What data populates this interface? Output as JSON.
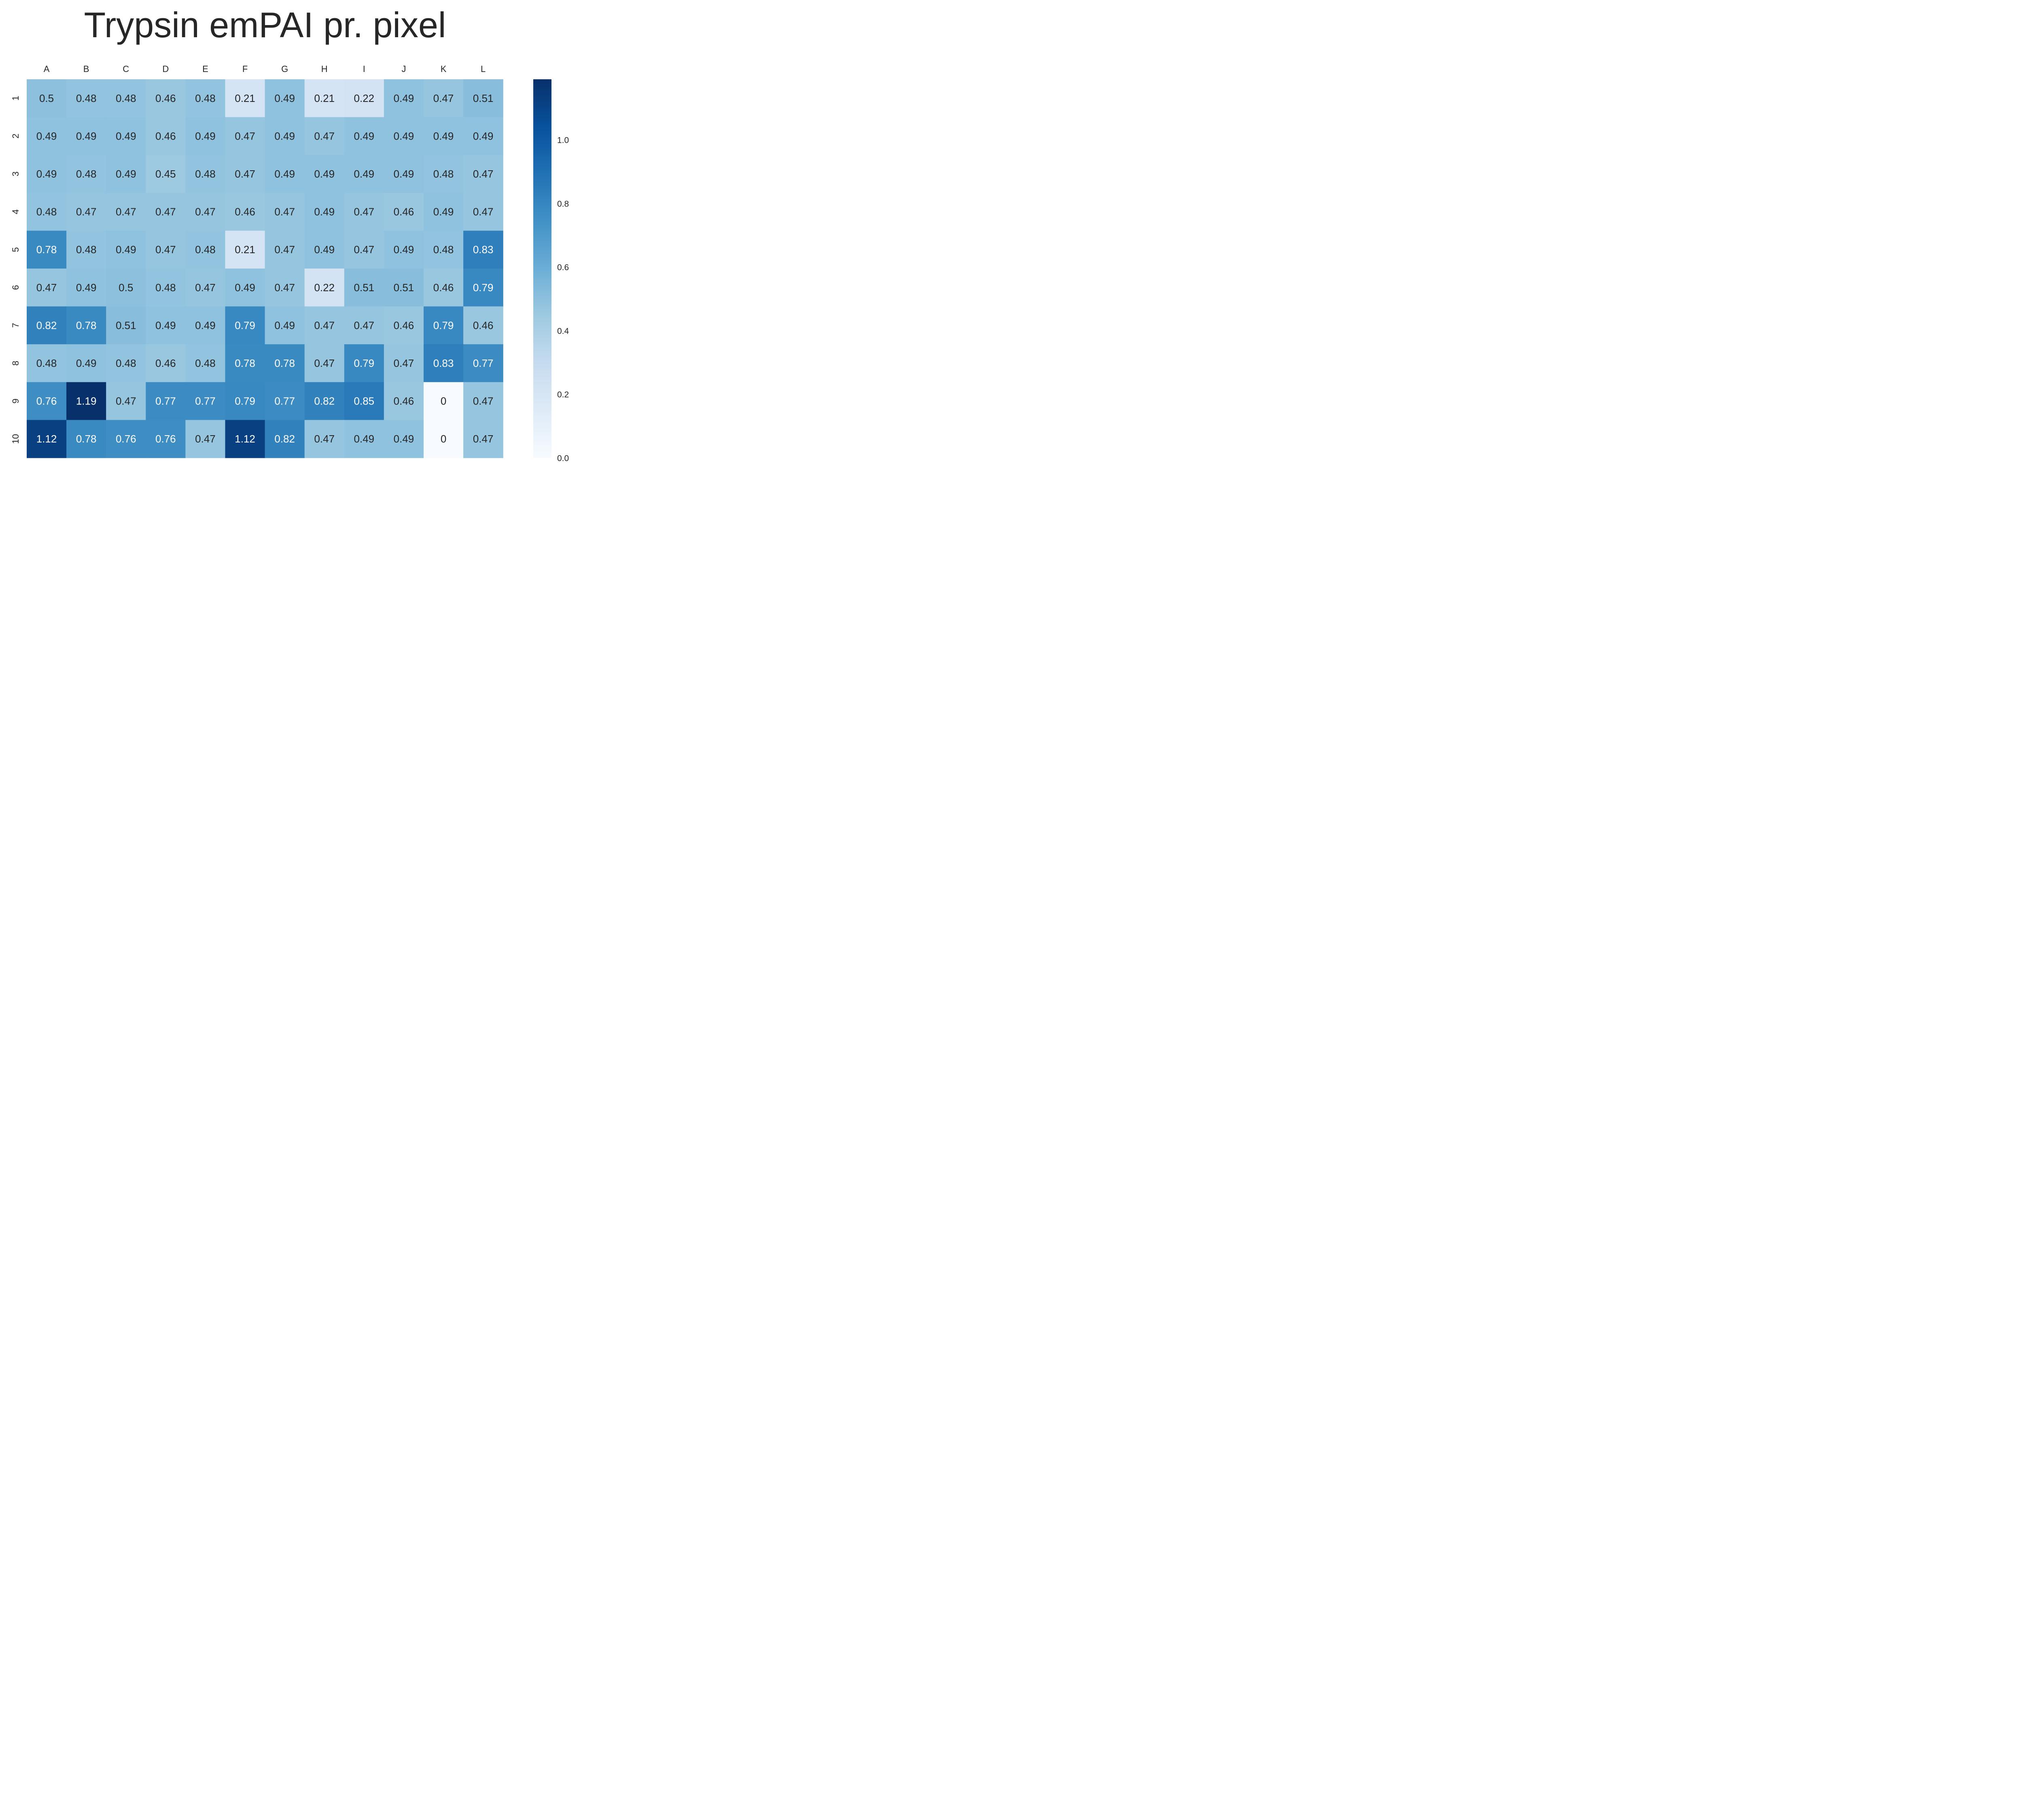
{
  "chart_data": {
    "type": "heatmap",
    "title": "Trypsin emPAI pr. pixel",
    "xlabel": "",
    "ylabel": "",
    "x_categories": [
      "A",
      "B",
      "C",
      "D",
      "E",
      "F",
      "G",
      "H",
      "I",
      "J",
      "K",
      "L"
    ],
    "y_categories": [
      "1",
      "2",
      "3",
      "4",
      "5",
      "6",
      "7",
      "8",
      "9",
      "10"
    ],
    "values": [
      [
        0.5,
        0.48,
        0.48,
        0.46,
        0.48,
        0.21,
        0.49,
        0.21,
        0.22,
        0.49,
        0.47,
        0.51
      ],
      [
        0.49,
        0.49,
        0.49,
        0.46,
        0.49,
        0.47,
        0.49,
        0.47,
        0.49,
        0.49,
        0.49,
        0.49
      ],
      [
        0.49,
        0.48,
        0.49,
        0.45,
        0.48,
        0.47,
        0.49,
        0.49,
        0.49,
        0.49,
        0.48,
        0.47
      ],
      [
        0.48,
        0.47,
        0.47,
        0.47,
        0.47,
        0.46,
        0.47,
        0.49,
        0.47,
        0.46,
        0.49,
        0.47
      ],
      [
        0.78,
        0.48,
        0.49,
        0.47,
        0.48,
        0.21,
        0.47,
        0.49,
        0.47,
        0.49,
        0.48,
        0.83
      ],
      [
        0.47,
        0.49,
        0.5,
        0.48,
        0.47,
        0.49,
        0.47,
        0.22,
        0.51,
        0.51,
        0.46,
        0.79
      ],
      [
        0.82,
        0.78,
        0.51,
        0.49,
        0.49,
        0.79,
        0.49,
        0.47,
        0.47,
        0.46,
        0.79,
        0.46
      ],
      [
        0.48,
        0.49,
        0.48,
        0.46,
        0.48,
        0.78,
        0.78,
        0.47,
        0.79,
        0.47,
        0.83,
        0.77
      ],
      [
        0.76,
        1.19,
        0.47,
        0.77,
        0.77,
        0.79,
        0.77,
        0.82,
        0.85,
        0.46,
        0,
        0.47
      ],
      [
        1.12,
        0.78,
        0.76,
        0.76,
        0.47,
        1.12,
        0.82,
        0.47,
        0.49,
        0.49,
        0,
        0.47
      ]
    ],
    "cell_labels": [
      [
        "0.5",
        "0.48",
        "0.48",
        "0.46",
        "0.48",
        "0.21",
        "0.49",
        "0.21",
        "0.22",
        "0.49",
        "0.47",
        "0.51"
      ],
      [
        "0.49",
        "0.49",
        "0.49",
        "0.46",
        "0.49",
        "0.47",
        "0.49",
        "0.47",
        "0.49",
        "0.49",
        "0.49",
        "0.49"
      ],
      [
        "0.49",
        "0.48",
        "0.49",
        "0.45",
        "0.48",
        "0.47",
        "0.49",
        "0.49",
        "0.49",
        "0.49",
        "0.48",
        "0.47"
      ],
      [
        "0.48",
        "0.47",
        "0.47",
        "0.47",
        "0.47",
        "0.46",
        "0.47",
        "0.49",
        "0.47",
        "0.46",
        "0.49",
        "0.47"
      ],
      [
        "0.78",
        "0.48",
        "0.49",
        "0.47",
        "0.48",
        "0.21",
        "0.47",
        "0.49",
        "0.47",
        "0.49",
        "0.48",
        "0.83"
      ],
      [
        "0.47",
        "0.49",
        "0.5",
        "0.48",
        "0.47",
        "0.49",
        "0.47",
        "0.22",
        "0.51",
        "0.51",
        "0.46",
        "0.79"
      ],
      [
        "0.82",
        "0.78",
        "0.51",
        "0.49",
        "0.49",
        "0.79",
        "0.49",
        "0.47",
        "0.47",
        "0.46",
        "0.79",
        "0.46"
      ],
      [
        "0.48",
        "0.49",
        "0.48",
        "0.46",
        "0.48",
        "0.78",
        "0.78",
        "0.47",
        "0.79",
        "0.47",
        "0.83",
        "0.77"
      ],
      [
        "0.76",
        "1.19",
        "0.47",
        "0.77",
        "0.77",
        "0.79",
        "0.77",
        "0.82",
        "0.85",
        "0.46",
        "0",
        "0.47"
      ],
      [
        "1.12",
        "0.78",
        "0.76",
        "0.76",
        "0.47",
        "1.12",
        "0.82",
        "0.47",
        "0.49",
        "0.49",
        "0",
        "0.47"
      ]
    ],
    "colormap": "Blues",
    "vmin": 0,
    "vmax": 1.19,
    "colorbar_ticks": [
      0.0,
      0.2,
      0.4,
      0.6,
      0.8,
      1.0
    ],
    "colorbar_tick_labels": [
      "0.0",
      "0.2",
      "0.4",
      "0.6",
      "0.8",
      "1.0"
    ],
    "x_ticks_position": "top",
    "grid": false,
    "legend": "colorbar-right",
    "colors": {
      "light_text": "#ffffff",
      "dark_text": "#262626",
      "blues": [
        "#f7fbff",
        "#deebf7",
        "#c6dbef",
        "#9ecae1",
        "#6baed6",
        "#4292c6",
        "#2171b5",
        "#08519c",
        "#08306b"
      ]
    }
  }
}
